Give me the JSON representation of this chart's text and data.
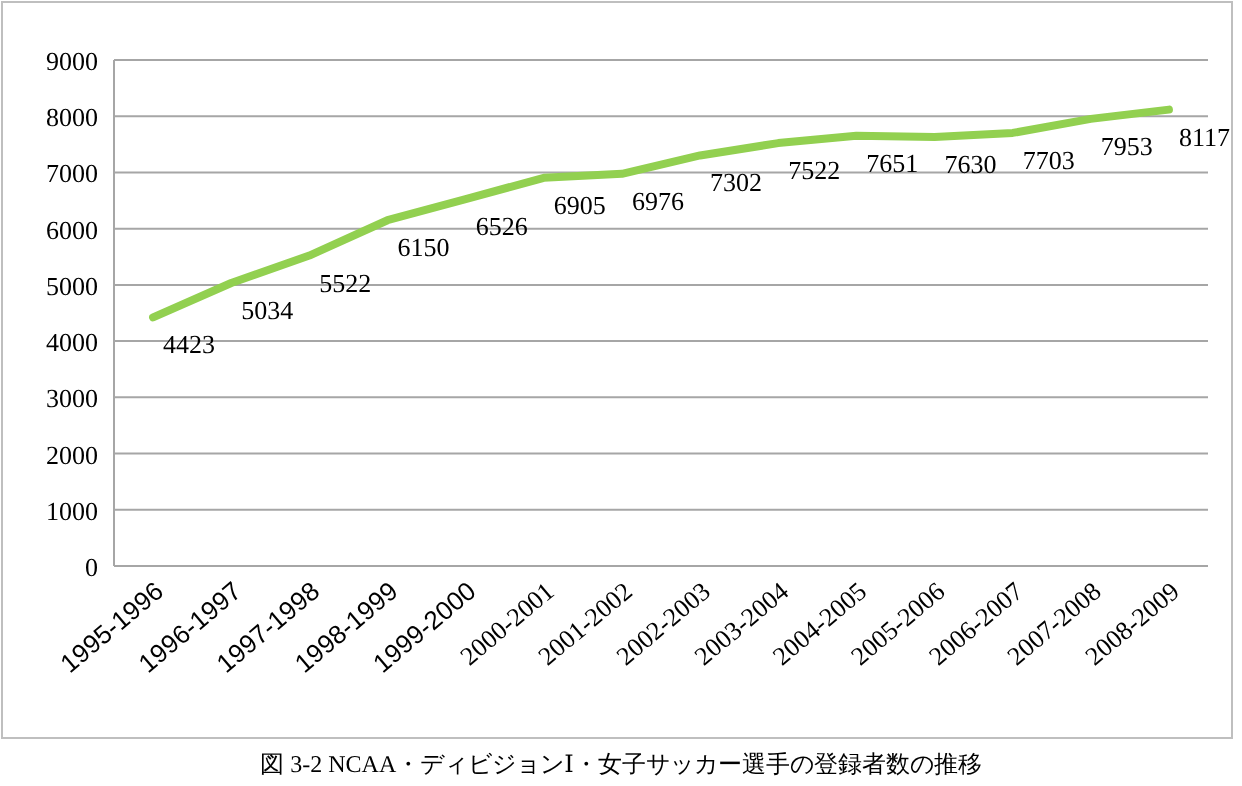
{
  "chart_data": {
    "type": "line",
    "annotations": [
      "図 3-2 NCAA・ディビジョンⅠ・女子サッカー選手の登録者数の推移"
    ],
    "categories": [
      "1995-1996",
      "1996-1997",
      "1997-1998",
      "1998-1999",
      "1999-2000",
      "2000-2001",
      "2001-2002",
      "2002-2003",
      "2003-2004",
      "2004-2005",
      "2005-2006",
      "2006-2007",
      "2007-2008",
      "2008-2009"
    ],
    "series": [
      {
        "color": "#92d050",
        "values": [
          4423,
          5034,
          5522,
          6150,
          6526,
          6905,
          6976,
          7302,
          7522,
          7651,
          7630,
          7703,
          7953,
          8117
        ]
      }
    ],
    "ylim": [
      0,
      9000
    ],
    "yticks": [
      0,
      1000,
      2000,
      3000,
      4000,
      5000,
      6000,
      7000,
      8000,
      9000
    ],
    "grid": "y",
    "data_labels": true,
    "marker": "none",
    "line_style": "solid"
  }
}
